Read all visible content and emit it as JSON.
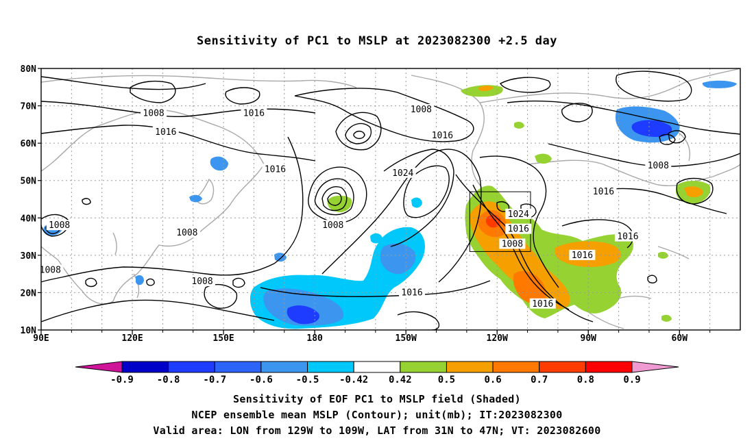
{
  "title": "Sensitivity of PC1 to MSLP at 2023082300 +2.5 day",
  "lat_labels": [
    "80N",
    "70N",
    "60N",
    "50N",
    "40N",
    "30N",
    "20N",
    "10N"
  ],
  "lon_labels": [
    "90E",
    "120E",
    "150E",
    "180",
    "150W",
    "120W",
    "90W",
    "60W"
  ],
  "contour_labels": [
    {
      "text": "1008",
      "lon": 127,
      "lat": 68
    },
    {
      "text": "1016",
      "lon": 131,
      "lat": 63
    },
    {
      "text": "1016",
      "lon": 160,
      "lat": 68
    },
    {
      "text": "1016",
      "lon": 167,
      "lat": 53
    },
    {
      "text": "1008",
      "lon": 96,
      "lat": 38
    },
    {
      "text": "1008",
      "lon": 138,
      "lat": 36
    },
    {
      "text": "1008",
      "lon": 93,
      "lat": 26
    },
    {
      "text": "1008",
      "lon": 143,
      "lat": 23
    },
    {
      "text": "1008",
      "lon": 186,
      "lat": 38
    },
    {
      "text": "1008",
      "lon": 215,
      "lat": 69
    },
    {
      "text": "1016",
      "lon": 222,
      "lat": 62
    },
    {
      "text": "1024",
      "lon": 209,
      "lat": 52
    },
    {
      "text": "1016",
      "lon": 212,
      "lat": 20
    },
    {
      "text": "1024",
      "lon": 247,
      "lat": 41
    },
    {
      "text": "1016",
      "lon": 247,
      "lat": 37
    },
    {
      "text": "1008",
      "lon": 245,
      "lat": 33
    },
    {
      "text": "1016",
      "lon": 255,
      "lat": 17
    },
    {
      "text": "1016",
      "lon": 268,
      "lat": 30
    },
    {
      "text": "1016",
      "lon": 275,
      "lat": 47
    },
    {
      "text": "1016",
      "lon": 283,
      "lat": 35
    },
    {
      "text": "1008",
      "lon": 293,
      "lat": 54
    }
  ],
  "valid_area_box": {
    "lon_west": -129,
    "lon_east": -109,
    "lat_south": 31,
    "lat_north": 47
  },
  "colorbar": {
    "ticks": [
      "-0.9",
      "-0.8",
      "-0.7",
      "-0.6",
      "-0.5",
      "-0.42",
      "0.42",
      "0.5",
      "0.6",
      "0.7",
      "0.8",
      "0.9"
    ],
    "colors": [
      "#d0149a",
      "#0000c8",
      "#1e3cff",
      "#2c64f8",
      "#3c96f0",
      "#00c8fa",
      "#ffffff",
      "#96d232",
      "#f5a000",
      "#ff7800",
      "#ff3c00",
      "#ff0000",
      "#f09ad2"
    ]
  },
  "captions": [
    "Sensitivity of EOF PC1 to MSLP field (Shaded)",
    "NCEP ensemble mean MSLP (Contour); unit(mb); IT:2023082300",
    "Valid area: LON from 129W to 109W, LAT from 31N to 47N; VT: 2023082600"
  ]
}
